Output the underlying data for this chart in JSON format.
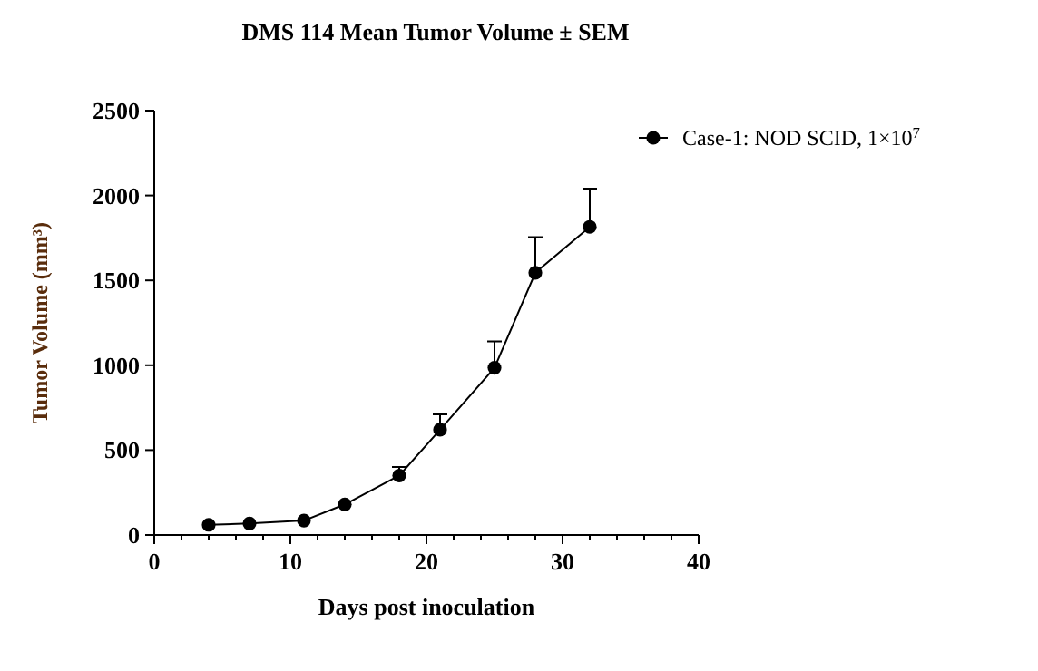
{
  "chart_data": {
    "type": "line",
    "title": "DMS 114 Mean Tumor Volume ± SEM",
    "xlabel": "Days post inoculation",
    "ylabel": "Tumor Volume (mm³)",
    "x": [
      4,
      7,
      11,
      14,
      18,
      21,
      25,
      28,
      32
    ],
    "series": [
      {
        "name": "Case-1: NOD SCID, 1×10$^{7}$",
        "color": "#000000",
        "values": [
          60,
          68,
          85,
          180,
          350,
          620,
          985,
          1545,
          1815
        ],
        "errors": [
          null,
          null,
          null,
          null,
          [
            350,
            400
          ],
          [
            620,
            710
          ],
          [
            985,
            1140
          ],
          [
            1545,
            1755
          ],
          [
            1815,
            2040
          ]
        ]
      }
    ],
    "xlim": [
      0,
      40
    ],
    "xticks": [
      0,
      {
        "value": 2,
        "label": null
      },
      {
        "value": 4,
        "label": null
      },
      {
        "value": 6,
        "label": null
      },
      {
        "value": 8,
        "label": null
      },
      10,
      {
        "value": 12,
        "label": null
      },
      {
        "value": 14,
        "label": null
      },
      {
        "value": 16,
        "label": null
      },
      {
        "value": 18,
        "label": null
      },
      20,
      {
        "value": 22,
        "label": null
      },
      {
        "value": 24,
        "label": null
      },
      {
        "value": 26,
        "label": null
      },
      {
        "value": 28,
        "label": null
      },
      30,
      {
        "value": 32,
        "label": null
      },
      {
        "value": 34,
        "label": null
      },
      {
        "value": 36,
        "label": null
      },
      {
        "value": 38,
        "label": null
      },
      40
    ],
    "ylim": [
      0,
      2500
    ],
    "yticks": [
      0,
      500,
      1000,
      1500,
      2000,
      2500
    ],
    "legend": "top right",
    "marker": "circle",
    "line_style": "solid",
    "grid": false
  }
}
